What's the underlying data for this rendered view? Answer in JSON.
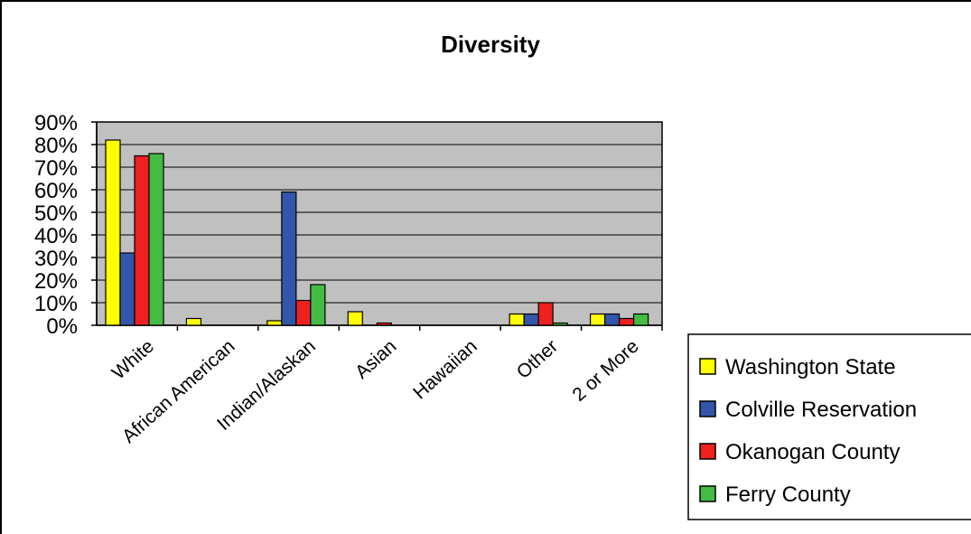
{
  "chart_data": {
    "type": "bar",
    "title": "Diversity",
    "xlabel": "",
    "ylabel": "",
    "ylim": [
      0,
      90
    ],
    "yticks": [
      "0%",
      "10%",
      "20%",
      "30%",
      "40%",
      "50%",
      "60%",
      "70%",
      "80%",
      "90%"
    ],
    "categories": [
      "White",
      "African American",
      "Indian/Alaskan",
      "Asian",
      "Hawaiian",
      "Other",
      "2 or More"
    ],
    "series": [
      {
        "name": "Washington State",
        "color": "#ffff00",
        "values": [
          82,
          3,
          2,
          6,
          0,
          5,
          5
        ]
      },
      {
        "name": "Colville Reservation",
        "color": "#3355aa",
        "values": [
          32,
          0,
          59,
          0,
          0,
          5,
          5
        ]
      },
      {
        "name": "Okanogan County",
        "color": "#ee2020",
        "values": [
          75,
          0,
          11,
          1,
          0,
          10,
          3
        ]
      },
      {
        "name": "Ferry County",
        "color": "#44bb44",
        "values": [
          76,
          0,
          18,
          0,
          0,
          1,
          5
        ]
      }
    ],
    "grid": true,
    "plot_background": "#c0c0c0",
    "legend": "right"
  }
}
